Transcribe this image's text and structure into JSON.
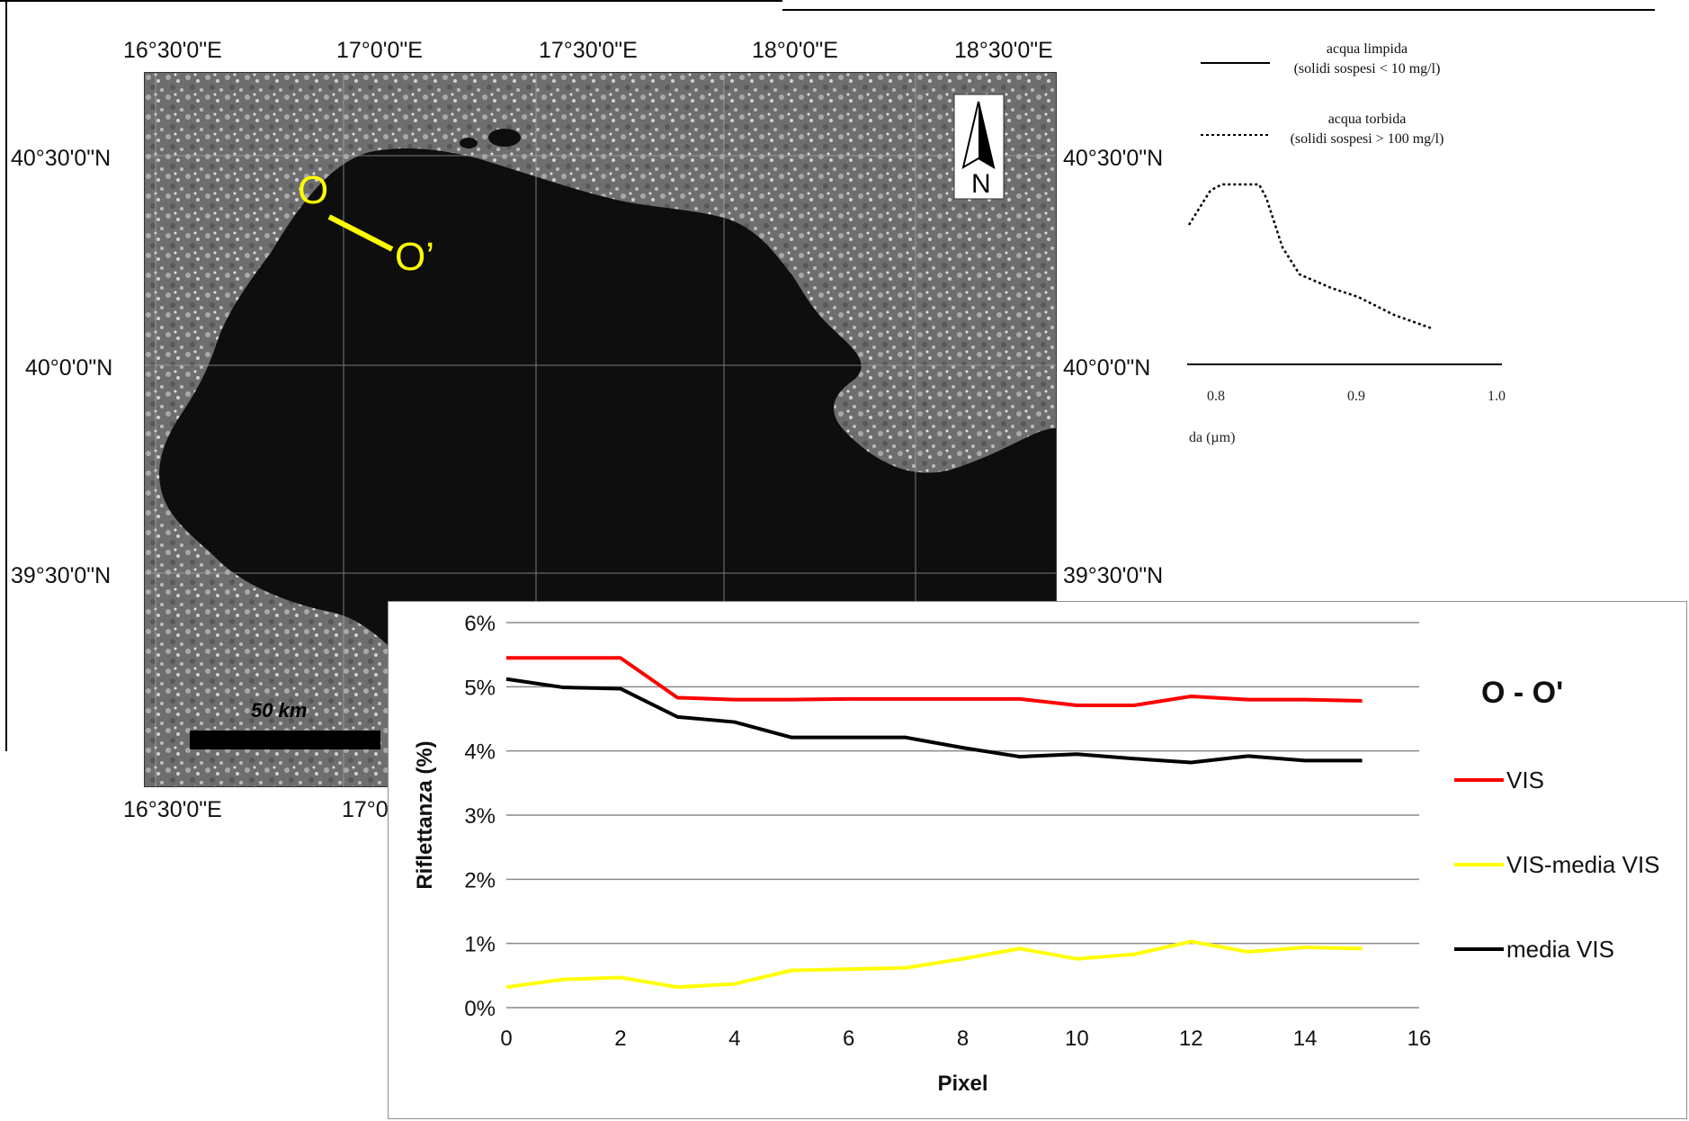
{
  "map": {
    "lon_labels_top": [
      "16°30'0\"E",
      "17°0'0\"E",
      "17°30'0\"E",
      "18°0'0\"E",
      "18°30'0\"E"
    ],
    "lon_labels_bottom": [
      "16°30'0\"E",
      "17°0"
    ],
    "lat_labels_left": [
      "40°30'0\"N",
      "40°0'0\"N",
      "39°30'0\"N"
    ],
    "lat_labels_right": [
      "40°30'0\"N",
      "40°0'0\"N",
      "39°30'0\"N"
    ],
    "north_label": "N",
    "scale_label": "50 km",
    "transect_start": "O",
    "transect_end": "O’",
    "transect_color": "#ffff00"
  },
  "spectra_legend": {
    "clear_title": "acqua limpida",
    "clear_sub": "(solidi sospesi < 10 mg/l)",
    "turbid_title": "acqua torbida",
    "turbid_sub": "(solidi sospesi > 100 mg/l)",
    "xticks": [
      "0.8",
      "0.9",
      "1.0"
    ],
    "xlabel": "da (µm)"
  },
  "chart_data": {
    "type": "line",
    "title": "O - O'",
    "xlabel": "Pixel",
    "ylabel": "Riflettanza (%)",
    "x": [
      0,
      1,
      2,
      3,
      4,
      5,
      6,
      7,
      8,
      9,
      10,
      11,
      12,
      13,
      14,
      15
    ],
    "xlim": [
      0,
      16
    ],
    "xticks": [
      "0",
      "2",
      "4",
      "6",
      "8",
      "10",
      "12",
      "14",
      "16"
    ],
    "ylim": [
      0,
      6
    ],
    "yticks": [
      "0%",
      "1%",
      "2%",
      "3%",
      "4%",
      "5%",
      "6%"
    ],
    "grid": true,
    "legend_position": "right",
    "series": [
      {
        "name": "VIS",
        "color": "#ff0000",
        "values": [
          5.45,
          5.45,
          5.45,
          4.83,
          4.8,
          4.8,
          4.81,
          4.81,
          4.81,
          4.81,
          4.71,
          4.71,
          4.85,
          4.8,
          4.8,
          4.78
        ]
      },
      {
        "name": "VIS-media VIS",
        "color": "#ffff00",
        "values": [
          0.32,
          0.44,
          0.47,
          0.32,
          0.37,
          0.58,
          0.6,
          0.62,
          0.76,
          0.92,
          0.76,
          0.83,
          1.03,
          0.87,
          0.94,
          0.92
        ]
      },
      {
        "name": "media VIS",
        "color": "#000000",
        "values": [
          5.12,
          4.99,
          4.97,
          4.53,
          4.45,
          4.21,
          4.21,
          4.21,
          4.05,
          3.91,
          3.95,
          3.88,
          3.82,
          3.92,
          3.85,
          3.85
        ]
      }
    ]
  }
}
